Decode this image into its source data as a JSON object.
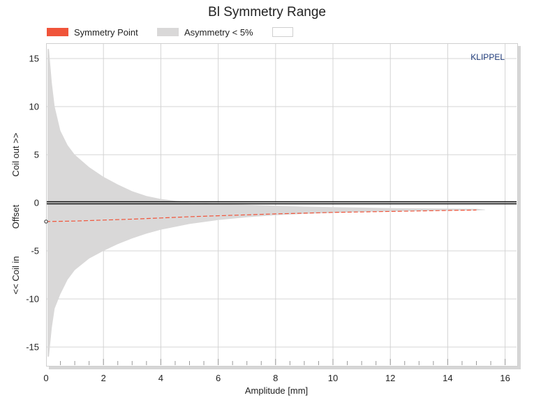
{
  "chart_data": {
    "type": "area",
    "title": "Bl Symmetry Range",
    "xlabel": "Amplitude [mm]",
    "ylabel_parts": [
      "<< Coil in",
      "Offset",
      "Coil out >>"
    ],
    "brand": "KLIPPEL",
    "xlim": [
      0,
      16.5
    ],
    "ylim": [
      -17,
      17
    ],
    "xticks": [
      0,
      2,
      4,
      6,
      8,
      10,
      12,
      14,
      16
    ],
    "yticks": [
      -15,
      -10,
      -5,
      0,
      5,
      10,
      15
    ],
    "grid": true,
    "legend": [
      {
        "name": "Symmetry Point",
        "color": "#f0543a"
      },
      {
        "name": "Asymmetry < 5%",
        "color": "#d9d8d8"
      },
      {
        "name": "",
        "color": "#ffffff"
      }
    ],
    "series": [
      {
        "name": "Asymmetry < 5%",
        "kind": "band",
        "color": "#d9d8d8",
        "x": [
          0.05,
          0.1,
          0.2,
          0.3,
          0.5,
          0.75,
          1.0,
          1.5,
          2.0,
          2.5,
          3.0,
          3.5,
          4.0,
          4.5,
          5.0,
          6.0,
          7.0,
          8.0,
          9.0,
          10.0,
          11.0,
          12.0,
          13.0,
          14.0,
          15.0,
          15.3
        ],
        "upper": [
          16.0,
          16.0,
          12.5,
          10.0,
          7.5,
          6.0,
          5.0,
          3.7,
          2.7,
          1.9,
          1.2,
          0.7,
          0.4,
          0.2,
          0.05,
          -0.1,
          -0.2,
          -0.3,
          -0.4,
          -0.45,
          -0.5,
          -0.55,
          -0.58,
          -0.6,
          -0.62,
          -0.7
        ],
        "lower": [
          -16.0,
          -16.0,
          -13.0,
          -11.0,
          -9.5,
          -8.0,
          -7.0,
          -5.8,
          -5.0,
          -4.3,
          -3.7,
          -3.2,
          -2.8,
          -2.5,
          -2.2,
          -1.8,
          -1.5,
          -1.3,
          -1.15,
          -1.05,
          -0.95,
          -0.9,
          -0.85,
          -0.82,
          -0.8,
          -0.75
        ]
      },
      {
        "name": "Symmetry Point",
        "kind": "line",
        "color": "#f0543a",
        "x": [
          0.0,
          1.0,
          2.0,
          3.0,
          4.0,
          5.0,
          6.0,
          7.0,
          8.0,
          9.0,
          10.0,
          11.0,
          12.0,
          13.0,
          14.0,
          15.0
        ],
        "y": [
          -1.95,
          -1.9,
          -1.8,
          -1.7,
          -1.58,
          -1.45,
          -1.35,
          -1.25,
          -1.15,
          -1.08,
          -1.0,
          -0.95,
          -0.9,
          -0.85,
          -0.8,
          -0.75
        ]
      }
    ],
    "reference_line_y": 0
  }
}
